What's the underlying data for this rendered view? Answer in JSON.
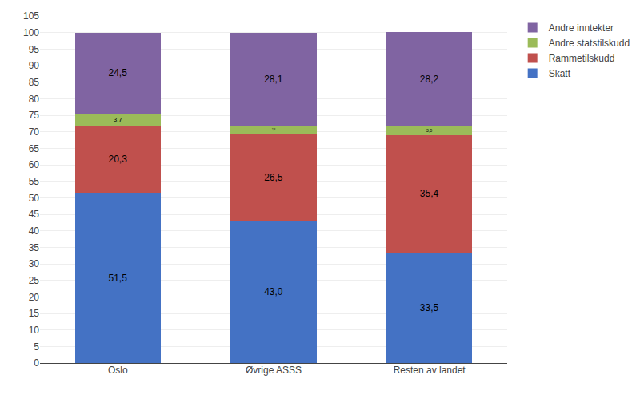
{
  "chart_data": {
    "type": "bar",
    "stacked": true,
    "categories": [
      "Oslo",
      "Øvrige ASSS",
      "Resten av landet"
    ],
    "series": [
      {
        "name": "Skatt",
        "color": "#4472C4",
        "values": [
          51.5,
          43.0,
          33.5
        ],
        "value_labels": [
          "51,5",
          "43,0",
          "33,5"
        ]
      },
      {
        "name": "Rammetilskudd",
        "color": "#C0504D",
        "values": [
          20.3,
          26.5,
          35.4
        ],
        "value_labels": [
          "20,3",
          "26,5",
          "35,4"
        ]
      },
      {
        "name": "Andre statstilskudd",
        "color": "#9BBB59",
        "values": [
          3.7,
          2.4,
          3.0
        ],
        "value_labels": [
          "3,7",
          "2,4",
          "3,0"
        ]
      },
      {
        "name": "Andre inntekter",
        "color": "#8064A2",
        "values": [
          24.5,
          28.1,
          28.2
        ],
        "value_labels": [
          "24,5",
          "28,1",
          "28,2"
        ]
      }
    ],
    "ylim": [
      0,
      105
    ],
    "yticks": [
      0,
      5,
      10,
      15,
      20,
      25,
      30,
      35,
      40,
      45,
      50,
      55,
      60,
      65,
      70,
      75,
      80,
      85,
      90,
      95,
      100,
      105
    ],
    "grid": true,
    "data_labels": true,
    "legend": "right"
  }
}
